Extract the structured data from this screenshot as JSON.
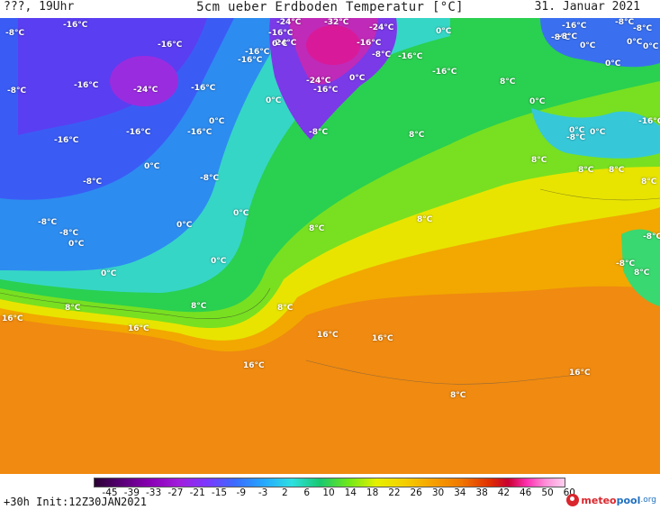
{
  "header": {
    "left": "???, 19Uhr",
    "title": "5cm ueber Erdboden Temperatur [°C]",
    "date": "31. Januar 2021"
  },
  "footer": {
    "run": "+30h  Init:12Z30JAN2021",
    "logo_a": "meteo",
    "logo_b": "pool",
    "logo_c": ".org"
  },
  "colorbar": {
    "ticks": [
      "-45",
      "-39",
      "-33",
      "-27",
      "-21",
      "-15",
      "-9",
      "-3",
      "2",
      "6",
      "10",
      "14",
      "18",
      "22",
      "26",
      "30",
      "34",
      "38",
      "42",
      "46",
      "50",
      "60"
    ]
  },
  "map_labels": [
    {
      "text": "-8°C"
    },
    {
      "text": "-16°C"
    },
    {
      "text": "-16°C"
    },
    {
      "text": "-24°C"
    },
    {
      "text": "-32°C"
    },
    {
      "text": "-24°C"
    },
    {
      "text": "-16°C"
    },
    {
      "text": "-24°C"
    },
    {
      "text": "-16°C"
    },
    {
      "text": "-16°C"
    },
    {
      "text": "-16°C"
    },
    {
      "text": "-8°C"
    },
    {
      "text": "-8°C"
    },
    {
      "text": "0°C"
    },
    {
      "text": "-16°C"
    },
    {
      "text": "-8°C"
    },
    {
      "text": "-16°C"
    },
    {
      "text": "-24°C"
    },
    {
      "text": "-16°C"
    },
    {
      "text": "-24°C"
    },
    {
      "text": "-16°C"
    },
    {
      "text": "0°C"
    },
    {
      "text": "0°C"
    },
    {
      "text": "-16°C"
    },
    {
      "text": "0°C"
    },
    {
      "text": "-16°C"
    },
    {
      "text": "-16°C"
    },
    {
      "text": "-8°C"
    },
    {
      "text": "8°C"
    },
    {
      "text": "8°C"
    },
    {
      "text": "-16°C"
    },
    {
      "text": "-8°C"
    },
    {
      "text": "-8°C"
    },
    {
      "text": "-8°C"
    },
    {
      "text": "0°C"
    },
    {
      "text": "0°C"
    },
    {
      "text": "-8°C"
    },
    {
      "text": "-8°C"
    },
    {
      "text": "0°C"
    },
    {
      "text": "0°C"
    },
    {
      "text": "8°C"
    },
    {
      "text": "8°C"
    },
    {
      "text": "0°C"
    },
    {
      "text": "0°C"
    },
    {
      "text": "8°C"
    },
    {
      "text": "8°C"
    },
    {
      "text": "16°C"
    },
    {
      "text": "16°C"
    },
    {
      "text": "16°C"
    },
    {
      "text": "16°C"
    },
    {
      "text": "16°C"
    },
    {
      "text": "16°C"
    },
    {
      "text": "-16°C"
    },
    {
      "text": "-8°C"
    },
    {
      "text": "-8°C"
    },
    {
      "text": "0°C"
    },
    {
      "text": "0°C"
    },
    {
      "text": "0°C"
    },
    {
      "text": "-8°C"
    },
    {
      "text": "0°C"
    },
    {
      "text": "8°C"
    },
    {
      "text": "8°C"
    },
    {
      "text": "8°C"
    },
    {
      "text": "-16°C"
    },
    {
      "text": "0°C"
    },
    {
      "text": "0°C"
    },
    {
      "text": "0°C"
    },
    {
      "text": "8°C"
    },
    {
      "text": "-8°C"
    },
    {
      "text": "-8°C"
    },
    {
      "text": "0°C"
    },
    {
      "text": "8°C"
    },
    {
      "text": "8°C"
    },
    {
      "text": "8°C"
    }
  ]
}
